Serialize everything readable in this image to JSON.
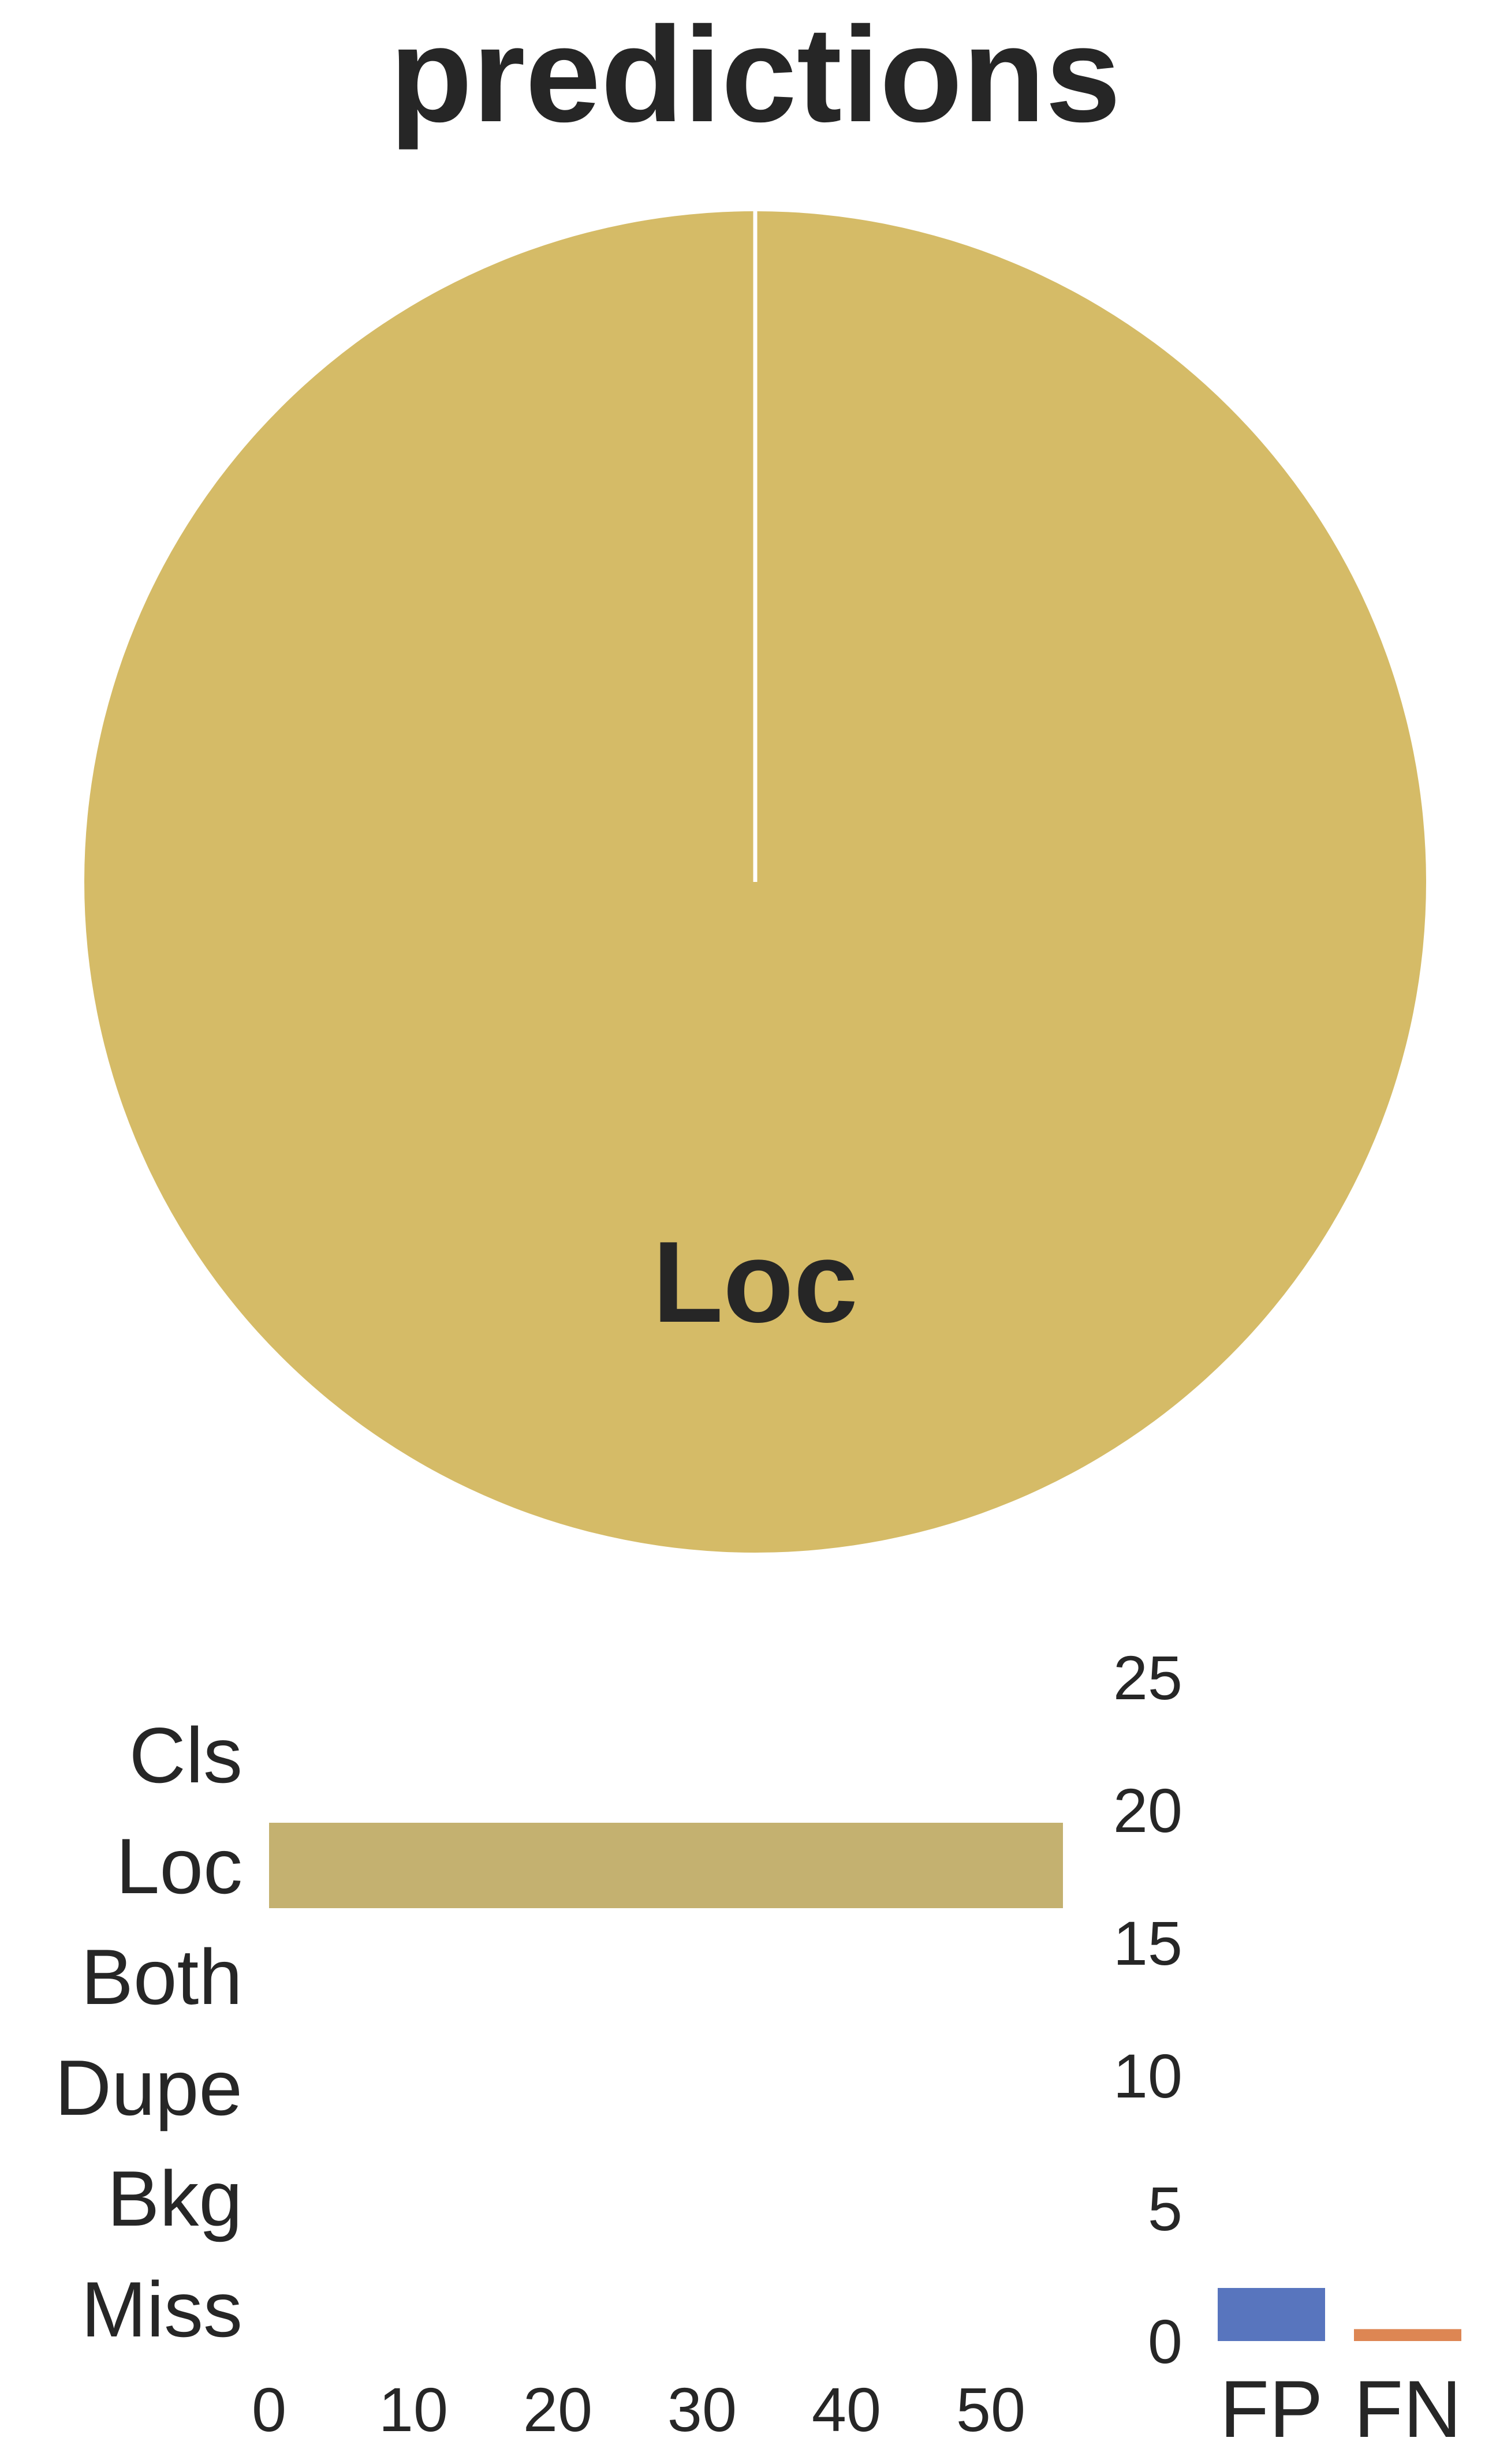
{
  "chart_data": [
    {
      "type": "pie",
      "title": "predictions",
      "slices": [
        {
          "label": "Loc",
          "value": 1.0,
          "color": "#d5bb67"
        }
      ]
    },
    {
      "type": "bar",
      "orientation": "horizontal",
      "categories": [
        "Cls",
        "Loc",
        "Both",
        "Dupe",
        "Bkg",
        "Miss"
      ],
      "values": [
        0,
        55,
        0,
        0,
        0,
        0
      ],
      "xticks": [
        "0",
        "10",
        "20",
        "30",
        "40",
        "50"
      ],
      "xlim": [
        0,
        56
      ],
      "grid": false,
      "bar_color": "#c4b170"
    },
    {
      "type": "bar",
      "categories": [
        "FP",
        "FN"
      ],
      "values": [
        2,
        0.45
      ],
      "yticks": [
        "0",
        "5",
        "10",
        "15",
        "20",
        "25"
      ],
      "ylim": [
        0,
        25
      ],
      "y_axis_side": "left",
      "grid": false,
      "colors": [
        "#5875be",
        "#dd8653"
      ]
    }
  ]
}
